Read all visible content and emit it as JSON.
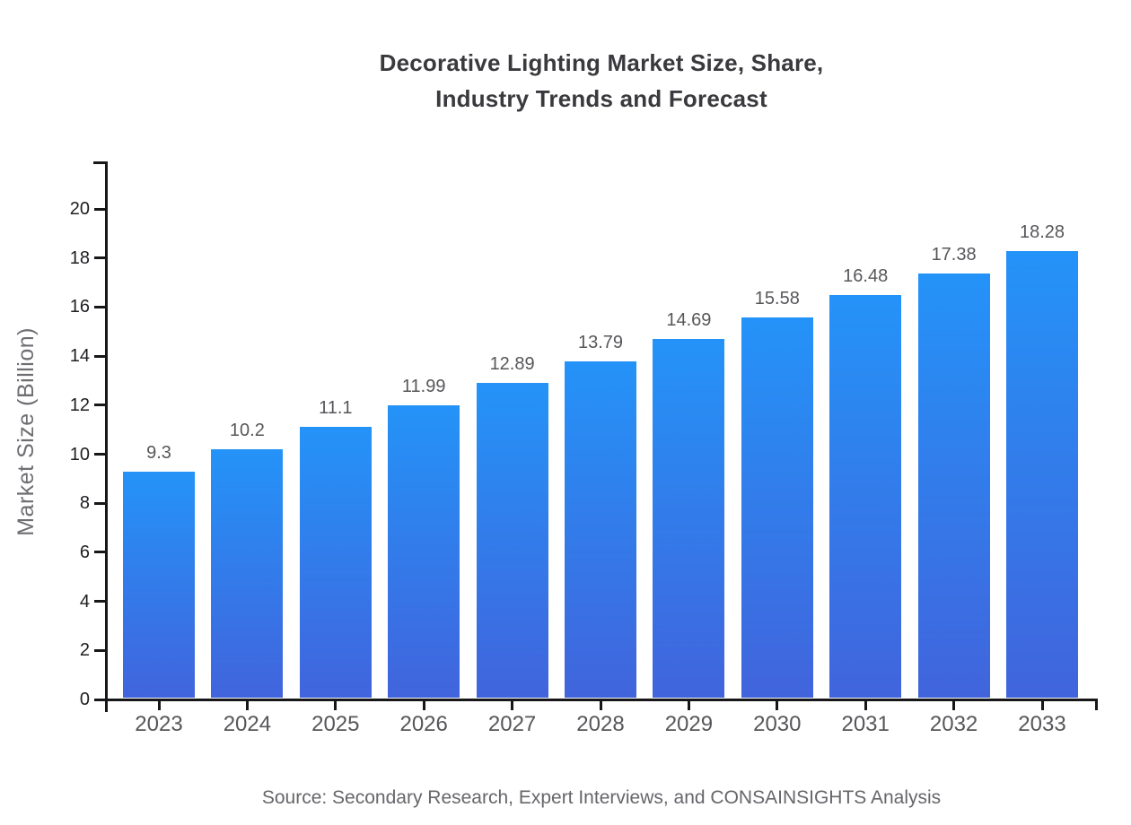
{
  "chart_data": {
    "type": "bar",
    "title_line1": "Decorative Lighting Market Size, Share,",
    "title_line2": "Industry Trends and Forecast",
    "categories": [
      "2023",
      "2024",
      "2025",
      "2026",
      "2027",
      "2028",
      "2029",
      "2030",
      "2031",
      "2032",
      "2033"
    ],
    "values": [
      9.3,
      10.2,
      11.1,
      11.99,
      12.89,
      13.79,
      14.69,
      15.58,
      16.48,
      17.38,
      18.28
    ],
    "value_labels": [
      "9.3",
      "10.2",
      "11.1",
      "11.99",
      "12.89",
      "13.79",
      "14.69",
      "15.58",
      "16.48",
      "17.38",
      "18.28"
    ],
    "xlabel": "",
    "ylabel": "Market Size (Billion)",
    "ylim": [
      0,
      20
    ],
    "yticks": [
      0,
      2,
      4,
      6,
      8,
      10,
      12,
      14,
      16,
      18,
      20
    ],
    "grid": false,
    "legend": false,
    "source": "Source: Secondary Research, Expert Interviews, and CONSAINSIGHTS Analysis",
    "colors": {
      "bar_gradient_top": "#2493F8",
      "bar_gradient_bottom": "#4164DC",
      "axis": "#17171a",
      "title_text": "#3a3a3e",
      "tick_label_text": "#202024",
      "category_label_text": "#57575b",
      "value_label_text": "#57575b",
      "y_axis_title_text": "#6d6d72",
      "source_text": "#66666b"
    }
  }
}
